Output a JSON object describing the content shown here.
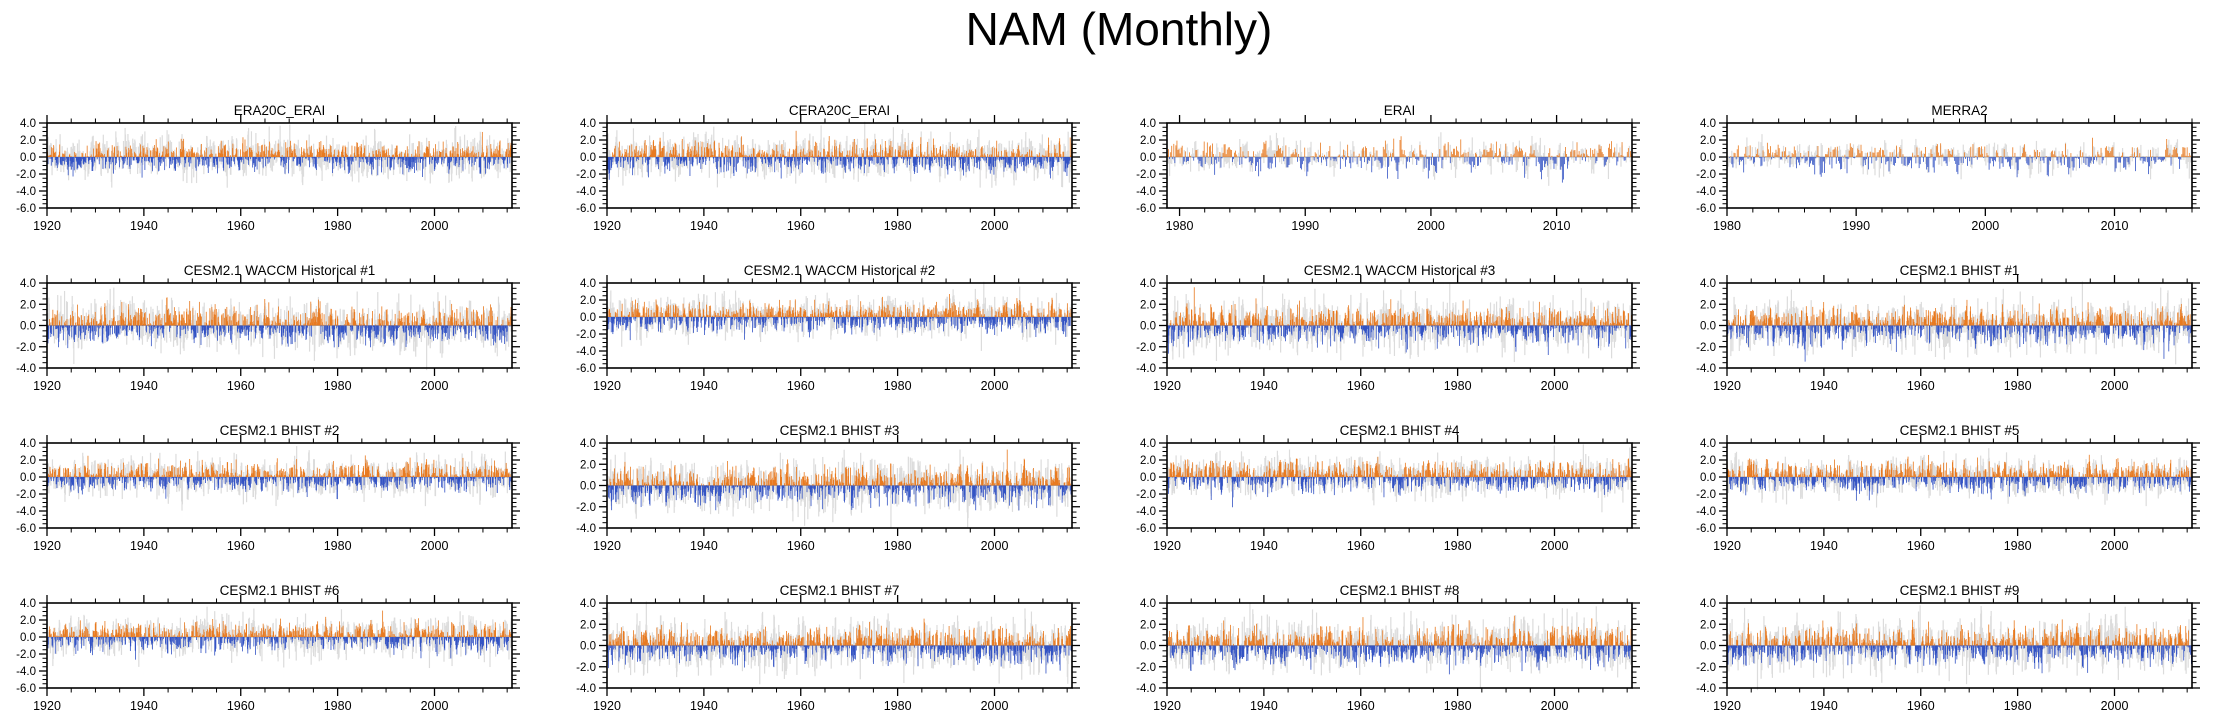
{
  "page_title": "NAM (Monthly)",
  "colors": {
    "positive_bar": "#e87a20",
    "negative_bar": "#3353c4",
    "reference_bar": "#dcdcdc",
    "zero_line": "#999999",
    "frame": "#000000"
  },
  "chart_data": [
    {
      "type": "bar",
      "title": "ERA20C_ERAI",
      "x_range": [
        1920,
        2016
      ],
      "x_major_ticks": [
        1920,
        1940,
        1960,
        1980,
        2000
      ],
      "x_minor_step": 5,
      "ylim": [
        -6,
        4
      ],
      "y_major_ticks": [
        4,
        2,
        0,
        -2,
        -4,
        -6
      ],
      "y_tick_labels": [
        "4.0",
        "2.0",
        "0.0",
        "-2.0",
        "-4.0",
        "-6.0"
      ],
      "y_minor_step": 0.5,
      "xlabel": "",
      "ylabel": "",
      "seed": 11,
      "bar_amplitude": 0.85,
      "ref_amplitude": 1.1,
      "series": [
        "monthly index (orange positive / blue negative)",
        "reference shading (gray)"
      ]
    },
    {
      "type": "bar",
      "title": "CERA20C_ERAI",
      "x_range": [
        1920,
        2016
      ],
      "x_major_ticks": [
        1920,
        1940,
        1960,
        1980,
        2000
      ],
      "x_minor_step": 5,
      "ylim": [
        -6,
        4
      ],
      "y_major_ticks": [
        4,
        2,
        0,
        -2,
        -4,
        -6
      ],
      "y_tick_labels": [
        "4.0",
        "2.0",
        "0.0",
        "-2.0",
        "-4.0",
        "-6.0"
      ],
      "y_minor_step": 0.5,
      "xlabel": "",
      "ylabel": "",
      "seed": 22,
      "bar_amplitude": 0.85,
      "ref_amplitude": 1.1,
      "series": [
        "monthly index (orange positive / blue negative)",
        "reference shading (gray)"
      ]
    },
    {
      "type": "bar",
      "title": "ERAI",
      "x_range": [
        1979,
        2016
      ],
      "x_major_ticks": [
        1980,
        1990,
        2000,
        2010
      ],
      "x_minor_step": 2,
      "ylim": [
        -6,
        4
      ],
      "y_major_ticks": [
        4,
        2,
        0,
        -2,
        -4,
        -6
      ],
      "y_tick_labels": [
        "4.0",
        "2.0",
        "0.0",
        "-2.0",
        "-4.0",
        "-6.0"
      ],
      "y_minor_step": 0.5,
      "xlabel": "",
      "ylabel": "",
      "seed": 33,
      "bar_amplitude": 0.9,
      "ref_amplitude": 0.9,
      "series": [
        "monthly index (orange positive / blue negative)",
        "reference shading (gray)"
      ]
    },
    {
      "type": "bar",
      "title": "MERRA2",
      "x_range": [
        1980,
        2016
      ],
      "x_major_ticks": [
        1980,
        1990,
        2000,
        2010
      ],
      "x_minor_step": 2,
      "ylim": [
        -6,
        4
      ],
      "y_major_ticks": [
        4,
        2,
        0,
        -2,
        -4,
        -6
      ],
      "y_tick_labels": [
        "4.0",
        "2.0",
        "0.0",
        "-2.0",
        "-4.0",
        "-6.0"
      ],
      "y_minor_step": 0.5,
      "xlabel": "",
      "ylabel": "",
      "seed": 44,
      "bar_amplitude": 0.9,
      "ref_amplitude": 0.9,
      "series": [
        "monthly index (orange positive / blue negative)",
        "reference shading (gray)"
      ]
    },
    {
      "type": "bar",
      "title": "CESM2.1 WACCM Historical #1",
      "x_range": [
        1920,
        2016
      ],
      "x_major_ticks": [
        1920,
        1940,
        1960,
        1980,
        2000
      ],
      "x_minor_step": 5,
      "ylim": [
        -4,
        4
      ],
      "y_major_ticks": [
        4,
        2,
        0,
        -2,
        -4
      ],
      "y_tick_labels": [
        "4.0",
        "2.0",
        "0.0",
        "-2.0",
        "-4.0"
      ],
      "y_minor_step": 0.5,
      "xlabel": "",
      "ylabel": "",
      "seed": 55,
      "bar_amplitude": 0.85,
      "ref_amplitude": 1.05,
      "series": [
        "monthly index (orange positive / blue negative)",
        "reference shading (gray)"
      ]
    },
    {
      "type": "bar",
      "title": "CESM2.1 WACCM Historical #2",
      "x_range": [
        1920,
        2016
      ],
      "x_major_ticks": [
        1920,
        1940,
        1960,
        1980,
        2000
      ],
      "x_minor_step": 5,
      "ylim": [
        -6,
        4
      ],
      "y_major_ticks": [
        4,
        2,
        0,
        -2,
        -4,
        -6
      ],
      "y_tick_labels": [
        "4.0",
        "2.0",
        "0.0",
        "-2.0",
        "-4.0",
        "-6.0"
      ],
      "y_minor_step": 0.5,
      "xlabel": "",
      "ylabel": "",
      "seed": 66,
      "bar_amplitude": 0.85,
      "ref_amplitude": 1.05,
      "series": [
        "monthly index (orange positive / blue negative)",
        "reference shading (gray)"
      ]
    },
    {
      "type": "bar",
      "title": "CESM2.1 WACCM Historical #3",
      "x_range": [
        1920,
        2016
      ],
      "x_major_ticks": [
        1920,
        1940,
        1960,
        1980,
        2000
      ],
      "x_minor_step": 5,
      "ylim": [
        -4,
        4
      ],
      "y_major_ticks": [
        4,
        2,
        0,
        -2,
        -4
      ],
      "y_tick_labels": [
        "4.0",
        "2.0",
        "0.0",
        "-2.0",
        "-4.0"
      ],
      "y_minor_step": 0.5,
      "xlabel": "",
      "ylabel": "",
      "seed": 77,
      "bar_amplitude": 0.85,
      "ref_amplitude": 1.05,
      "series": [
        "monthly index (orange positive / blue negative)",
        "reference shading (gray)"
      ]
    },
    {
      "type": "bar",
      "title": "CESM2.1 BHIST #1",
      "x_range": [
        1920,
        2016
      ],
      "x_major_ticks": [
        1920,
        1940,
        1960,
        1980,
        2000
      ],
      "x_minor_step": 5,
      "ylim": [
        -4,
        4
      ],
      "y_major_ticks": [
        4,
        2,
        0,
        -2,
        -4
      ],
      "y_tick_labels": [
        "4.0",
        "2.0",
        "0.0",
        "-2.0",
        "-4.0"
      ],
      "y_minor_step": 0.5,
      "xlabel": "",
      "ylabel": "",
      "seed": 88,
      "bar_amplitude": 0.85,
      "ref_amplitude": 1.05,
      "series": [
        "monthly index (orange positive / blue negative)",
        "reference shading (gray)"
      ]
    },
    {
      "type": "bar",
      "title": "CESM2.1 BHIST #2",
      "x_range": [
        1920,
        2016
      ],
      "x_major_ticks": [
        1920,
        1940,
        1960,
        1980,
        2000
      ],
      "x_minor_step": 5,
      "ylim": [
        -6,
        4
      ],
      "y_major_ticks": [
        4,
        2,
        0,
        -2,
        -4,
        -6
      ],
      "y_tick_labels": [
        "4.0",
        "2.0",
        "0.0",
        "-2.0",
        "-4.0",
        "-6.0"
      ],
      "y_minor_step": 0.5,
      "xlabel": "",
      "ylabel": "",
      "seed": 99,
      "bar_amplitude": 0.85,
      "ref_amplitude": 1.05,
      "series": [
        "monthly index (orange positive / blue negative)",
        "reference shading (gray)"
      ]
    },
    {
      "type": "bar",
      "title": "CESM2.1 BHIST #3",
      "x_range": [
        1920,
        2016
      ],
      "x_major_ticks": [
        1920,
        1940,
        1960,
        1980,
        2000
      ],
      "x_minor_step": 5,
      "ylim": [
        -4,
        4
      ],
      "y_major_ticks": [
        4,
        2,
        0,
        -2,
        -4
      ],
      "y_tick_labels": [
        "4.0",
        "2.0",
        "0.0",
        "-2.0",
        "-4.0"
      ],
      "y_minor_step": 0.5,
      "xlabel": "",
      "ylabel": "",
      "seed": 111,
      "bar_amplitude": 0.85,
      "ref_amplitude": 1.05,
      "series": [
        "monthly index (orange positive / blue negative)",
        "reference shading (gray)"
      ]
    },
    {
      "type": "bar",
      "title": "CESM2.1 BHIST #4",
      "x_range": [
        1920,
        2016
      ],
      "x_major_ticks": [
        1920,
        1940,
        1960,
        1980,
        2000
      ],
      "x_minor_step": 5,
      "ylim": [
        -6,
        4
      ],
      "y_major_ticks": [
        4,
        2,
        0,
        -2,
        -4,
        -6
      ],
      "y_tick_labels": [
        "4.0",
        "2.0",
        "0.0",
        "-2.0",
        "-4.0",
        "-6.0"
      ],
      "y_minor_step": 0.5,
      "xlabel": "",
      "ylabel": "",
      "seed": 122,
      "bar_amplitude": 0.85,
      "ref_amplitude": 1.05,
      "series": [
        "monthly index (orange positive / blue negative)",
        "reference shading (gray)"
      ]
    },
    {
      "type": "bar",
      "title": "CESM2.1 BHIST #5",
      "x_range": [
        1920,
        2016
      ],
      "x_major_ticks": [
        1920,
        1940,
        1960,
        1980,
        2000
      ],
      "x_minor_step": 5,
      "ylim": [
        -6,
        4
      ],
      "y_major_ticks": [
        4,
        2,
        0,
        -2,
        -4,
        -6
      ],
      "y_tick_labels": [
        "4.0",
        "2.0",
        "0.0",
        "-2.0",
        "-4.0",
        "-6.0"
      ],
      "y_minor_step": 0.5,
      "xlabel": "",
      "ylabel": "",
      "seed": 133,
      "bar_amplitude": 0.85,
      "ref_amplitude": 1.05,
      "series": [
        "monthly index (orange positive / blue negative)",
        "reference shading (gray)"
      ]
    },
    {
      "type": "bar",
      "title": "CESM2.1 BHIST #6",
      "x_range": [
        1920,
        2016
      ],
      "x_major_ticks": [
        1920,
        1940,
        1960,
        1980,
        2000
      ],
      "x_minor_step": 5,
      "ylim": [
        -6,
        4
      ],
      "y_major_ticks": [
        4,
        2,
        0,
        -2,
        -4,
        -6
      ],
      "y_tick_labels": [
        "4.0",
        "2.0",
        "0.0",
        "-2.0",
        "-4.0",
        "-6.0"
      ],
      "y_minor_step": 0.5,
      "xlabel": "",
      "ylabel": "",
      "seed": 144,
      "bar_amplitude": 0.85,
      "ref_amplitude": 1.05,
      "series": [
        "monthly index (orange positive / blue negative)",
        "reference shading (gray)"
      ]
    },
    {
      "type": "bar",
      "title": "CESM2.1 BHIST #7",
      "x_range": [
        1920,
        2016
      ],
      "x_major_ticks": [
        1920,
        1940,
        1960,
        1980,
        2000
      ],
      "x_minor_step": 5,
      "ylim": [
        -4,
        4
      ],
      "y_major_ticks": [
        4,
        2,
        0,
        -2,
        -4
      ],
      "y_tick_labels": [
        "4.0",
        "2.0",
        "0.0",
        "-2.0",
        "-4.0"
      ],
      "y_minor_step": 0.5,
      "xlabel": "",
      "ylabel": "",
      "seed": 155,
      "bar_amplitude": 0.85,
      "ref_amplitude": 1.05,
      "series": [
        "monthly index (orange positive / blue negative)",
        "reference shading (gray)"
      ]
    },
    {
      "type": "bar",
      "title": "CESM2.1 BHIST #8",
      "x_range": [
        1920,
        2016
      ],
      "x_major_ticks": [
        1920,
        1940,
        1960,
        1980,
        2000
      ],
      "x_minor_step": 5,
      "ylim": [
        -4,
        4
      ],
      "y_major_ticks": [
        4,
        2,
        0,
        -2,
        -4
      ],
      "y_tick_labels": [
        "4.0",
        "2.0",
        "0.0",
        "-2.0",
        "-4.0"
      ],
      "y_minor_step": 0.5,
      "xlabel": "",
      "ylabel": "",
      "seed": 166,
      "bar_amplitude": 0.85,
      "ref_amplitude": 1.05,
      "series": [
        "monthly index (orange positive / blue negative)",
        "reference shading (gray)"
      ]
    },
    {
      "type": "bar",
      "title": "CESM2.1 BHIST #9",
      "x_range": [
        1920,
        2016
      ],
      "x_major_ticks": [
        1920,
        1940,
        1960,
        1980,
        2000
      ],
      "x_minor_step": 5,
      "ylim": [
        -4,
        4
      ],
      "y_major_ticks": [
        4,
        2,
        0,
        -2,
        -4
      ],
      "y_tick_labels": [
        "4.0",
        "2.0",
        "0.0",
        "-2.0",
        "-4.0"
      ],
      "y_minor_step": 0.5,
      "xlabel": "",
      "ylabel": "",
      "seed": 177,
      "bar_amplitude": 0.85,
      "ref_amplitude": 1.05,
      "series": [
        "monthly index (orange positive / blue negative)",
        "reference shading (gray)"
      ]
    }
  ]
}
